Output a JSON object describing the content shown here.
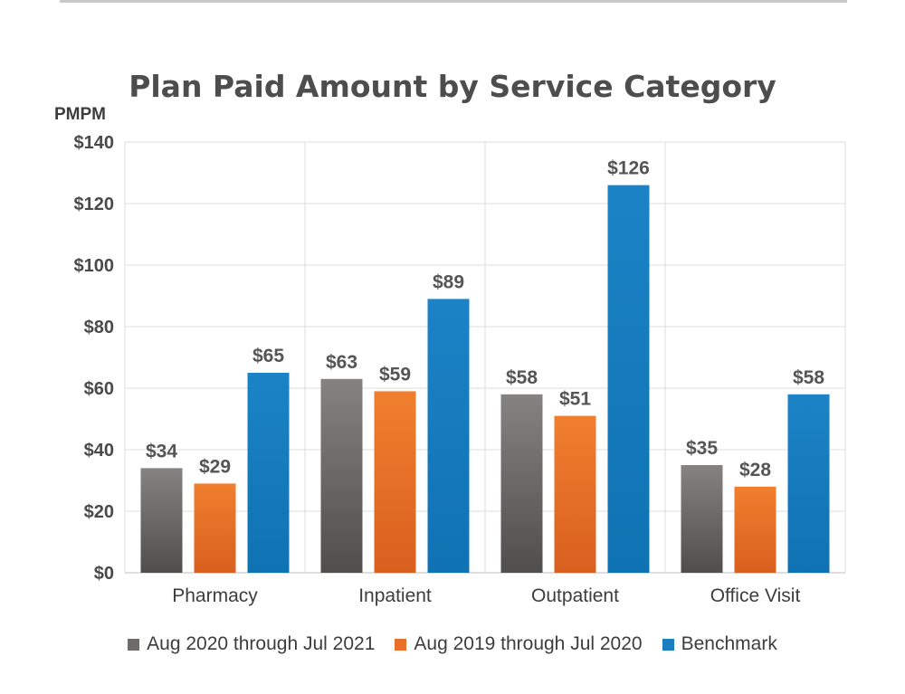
{
  "chart_data": {
    "type": "bar",
    "title": "Plan Paid Amount by Service Category",
    "ylabel": "PMPM",
    "xlabel": "",
    "ylim": [
      0,
      140
    ],
    "yticks": [
      0,
      20,
      40,
      60,
      80,
      100,
      120,
      140
    ],
    "ytick_labels": [
      "$0",
      "$20",
      "$40",
      "$60",
      "$80",
      "$100",
      "$120",
      "$140"
    ],
    "categories": [
      "Pharmacy",
      "Inpatient",
      "Outpatient",
      "Office Visit"
    ],
    "series": [
      {
        "name": "Aug 2020 through Jul 2021",
        "color": "#6e6c6b",
        "values": [
          34,
          63,
          58,
          35
        ],
        "labels": [
          "$34",
          "$63",
          "$58",
          "$35"
        ]
      },
      {
        "name": "Aug 2019 through Jul 2020",
        "color": "#e8702a",
        "values": [
          29,
          59,
          51,
          28
        ],
        "labels": [
          "$29",
          "$59",
          "$51",
          "$28"
        ]
      },
      {
        "name": "Benchmark",
        "color": "#1a7fc1",
        "values": [
          65,
          89,
          126,
          58
        ],
        "labels": [
          "$65",
          "$89",
          "$126",
          "$58"
        ]
      }
    ],
    "grid": true,
    "legend_position": "bottom"
  }
}
